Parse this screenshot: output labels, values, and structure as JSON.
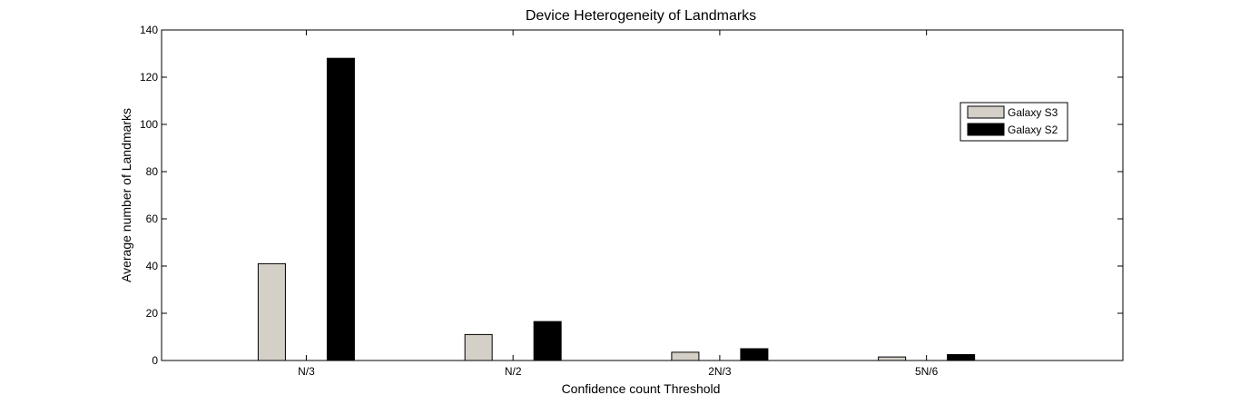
{
  "chart_data": {
    "type": "bar",
    "title": "Device Heterogeneity of Landmarks",
    "xlabel": "Confidence count Threshold",
    "ylabel": "Average number of Landmarks",
    "categories": [
      "N/3",
      "N/2",
      "2N/3",
      "5N/6"
    ],
    "ylim": [
      0,
      140
    ],
    "yticks": [
      0,
      20,
      40,
      60,
      80,
      100,
      120,
      140
    ],
    "grid": false,
    "legend_position": "top-right",
    "series": [
      {
        "name": "Galaxy S3",
        "color": "#d4d0c8",
        "values": [
          41,
          11,
          3.5,
          1.5
        ]
      },
      {
        "name": "Galaxy S2",
        "color": "#000000",
        "values": [
          128,
          16.5,
          5,
          2.5
        ]
      }
    ]
  }
}
